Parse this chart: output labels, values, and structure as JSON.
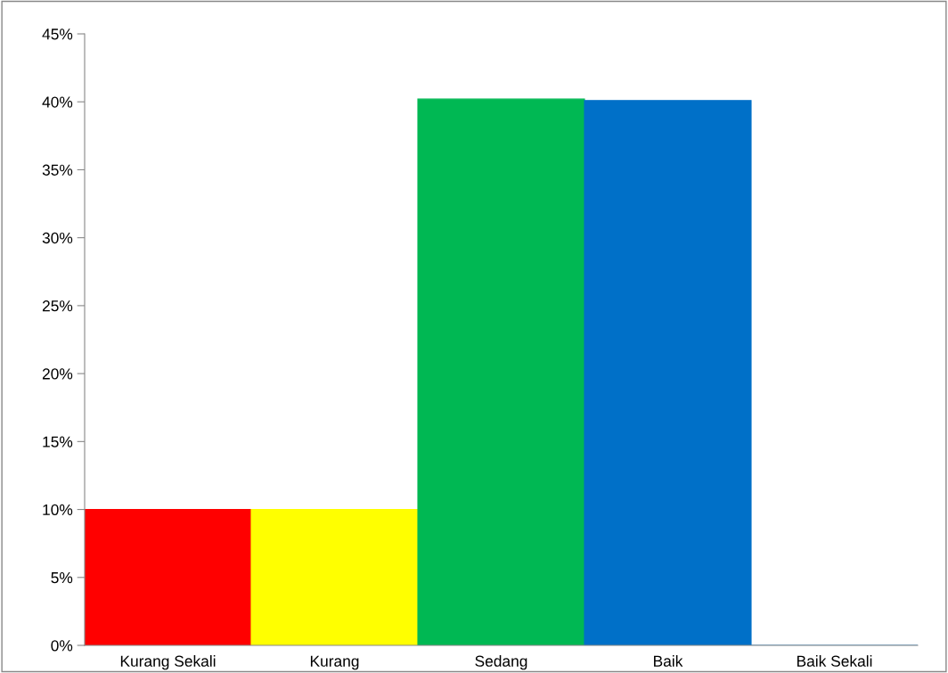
{
  "chart_data": {
    "type": "bar",
    "categories": [
      "Kurang Sekali",
      "Kurang",
      "Sedang",
      "Baik",
      "Baik Sekali"
    ],
    "values": [
      10,
      10,
      40.2,
      40.1,
      0
    ],
    "colors": [
      "#ff0000",
      "#ffff00",
      "#00b853",
      "#0070c8",
      "#0070c8"
    ],
    "ylim": [
      0,
      45
    ],
    "yticks": [
      {
        "value": 0,
        "label": "0%"
      },
      {
        "value": 5,
        "label": "5%"
      },
      {
        "value": 10,
        "label": "10%"
      },
      {
        "value": 15,
        "label": "15%"
      },
      {
        "value": 20,
        "label": "20%"
      },
      {
        "value": 25,
        "label": "25%"
      },
      {
        "value": 30,
        "label": "30%"
      },
      {
        "value": 35,
        "label": "35%"
      },
      {
        "value": 40,
        "label": "40%"
      },
      {
        "value": 45,
        "label": "45%"
      }
    ],
    "grid": false,
    "legend": false
  }
}
